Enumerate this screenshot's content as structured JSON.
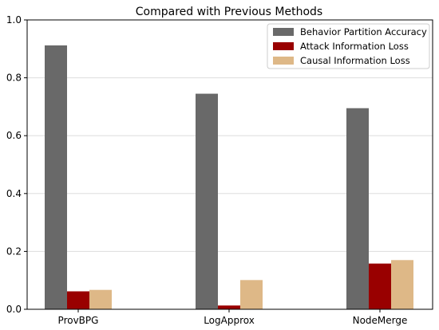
{
  "chart_data": {
    "type": "bar",
    "title": "Compared with Previous Methods",
    "xlabel": "",
    "ylabel": "",
    "categories": [
      "ProvBPG",
      "LogApprox",
      "NodeMerge"
    ],
    "series": [
      {
        "name": "Behavior Partition Accuracy",
        "color": "#696969",
        "values": [
          0.912,
          0.745,
          0.695
        ]
      },
      {
        "name": "Attack Information Loss",
        "color": "#990000",
        "values": [
          0.062,
          0.013,
          0.158
        ]
      },
      {
        "name": "Causal Information Loss",
        "color": "#deb887",
        "values": [
          0.067,
          0.101,
          0.17
        ]
      }
    ],
    "ylim": [
      0,
      1.0
    ],
    "yticks": [
      "0.0",
      "0.2",
      "0.4",
      "0.6",
      "0.8",
      "1.0"
    ],
    "grid": "horizontal",
    "legend_position": "top-right"
  }
}
